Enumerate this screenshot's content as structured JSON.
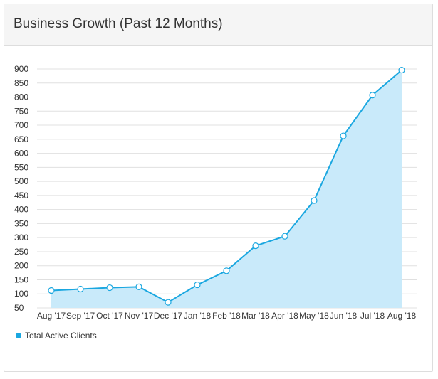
{
  "panel": {
    "title": "Business Growth (Past 12 Months)"
  },
  "legend": {
    "items": [
      {
        "label": "Total Active Clients"
      }
    ]
  },
  "colors": {
    "line": "#1aa7e0",
    "fill": "#c9eafa",
    "grid": "#e0e0e0",
    "point_fill": "#ffffff"
  },
  "chart_data": {
    "type": "area",
    "title": "Business Growth (Past 12 Months)",
    "xlabel": "",
    "ylabel": "",
    "categories": [
      "Aug '17",
      "Sep '17",
      "Oct '17",
      "Nov '17",
      "Dec '17",
      "Jan '18",
      "Feb '18",
      "Mar '18",
      "Apr '18",
      "May '18",
      "Jun '18",
      "Jul '18",
      "Aug '18"
    ],
    "series": [
      {
        "name": "Total Active Clients",
        "values": [
          112,
          117,
          122,
          125,
          70,
          132,
          182,
          271,
          305,
          432,
          662,
          807,
          896
        ]
      }
    ],
    "ylim": [
      50,
      900
    ],
    "yticks": [
      50,
      100,
      150,
      200,
      250,
      300,
      350,
      400,
      450,
      500,
      550,
      600,
      650,
      700,
      750,
      800,
      850,
      900
    ],
    "grid": true,
    "legend_position": "bottom-left"
  }
}
